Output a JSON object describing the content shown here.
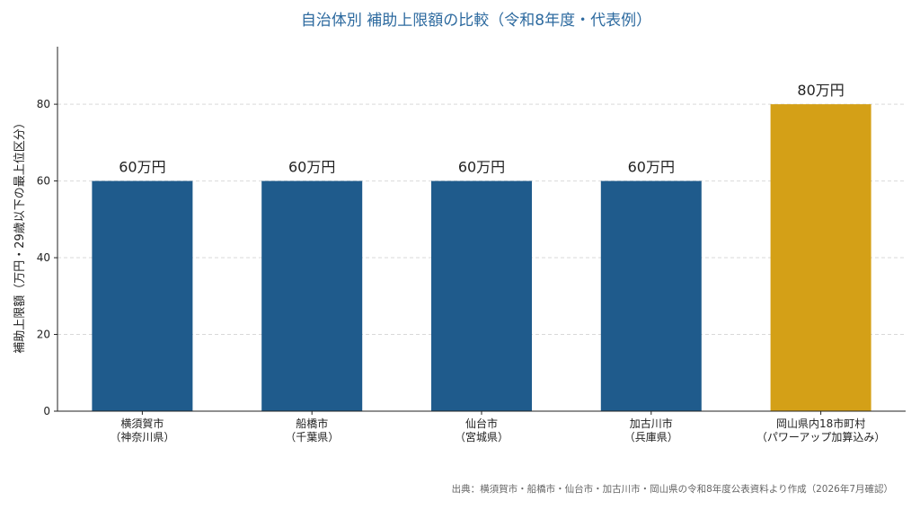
{
  "chart_data": {
    "type": "bar",
    "title": "自治体別 補助上限額の比較（令和8年度・代表例）",
    "ylabel": "補助上限額（万円・29歳以下の最上位区分）",
    "xlabel": "",
    "ylim": [
      0,
      95
    ],
    "yticks": [
      0,
      20,
      40,
      60,
      80
    ],
    "grid": "horizontal-dashed",
    "categories": [
      [
        "横須賀市",
        "（神奈川県）"
      ],
      [
        "船橋市",
        "（千葉県）"
      ],
      [
        "仙台市",
        "（宮城県）"
      ],
      [
        "加古川市",
        "（兵庫県）"
      ],
      [
        "岡山県内18市町村",
        "（パワーアップ加算込み）"
      ]
    ],
    "values": [
      60,
      60,
      60,
      60,
      80
    ],
    "data_labels": [
      "60万円",
      "60万円",
      "60万円",
      "60万円",
      "80万円"
    ],
    "colors": [
      "#1f5b8c",
      "#1f5b8c",
      "#1f5b8c",
      "#1f5b8c",
      "#d4a017"
    ],
    "title_color": "#2d6a9f"
  },
  "source_note": "出典：横須賀市・船橋市・仙台市・加古川市・岡山県の令和8年度公表資料より作成（2026年7月確認）"
}
